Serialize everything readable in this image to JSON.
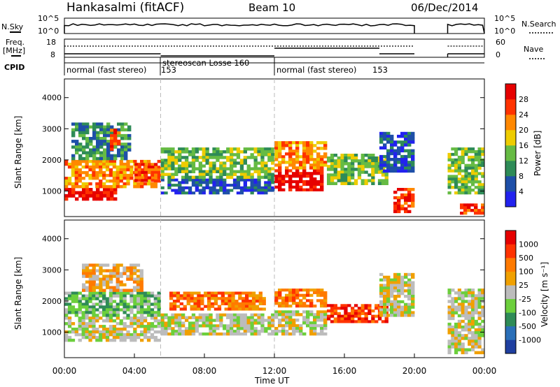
{
  "header": {
    "station": "Hankasalmi (fitACF)",
    "beam": "Beam 10",
    "date": "06/Dec/2014"
  },
  "nsky_panel": {
    "left_label": "N.Sky",
    "right_label": "N.Search",
    "left_ticks": [
      "10^5",
      "10^0"
    ],
    "right_ticks": [
      "10^5",
      "10^0"
    ]
  },
  "freq_panel": {
    "left_label_line1": "Freq.",
    "left_label_line2": "[MHz]",
    "left_ticks": [
      "18",
      "8"
    ],
    "right_label": "Nave",
    "right_ticks": [
      "60",
      "0"
    ]
  },
  "cpid": {
    "label": "CPID",
    "segments": [
      {
        "name": "normal (fast stereo)",
        "id": "153",
        "start": 0,
        "end": 5.5
      },
      {
        "name": "stereoscan Losse 160",
        "id": "",
        "start": 5.5,
        "end": 12.0
      },
      {
        "name": "normal (fast stereo)",
        "id": "153",
        "start": 12.0,
        "end": 24.0
      }
    ]
  },
  "power_panel": {
    "ylabel": "Slant Range [km]",
    "yticks": [
      "4000",
      "3000",
      "2000",
      "1000"
    ],
    "cbar_label": "Power [dB]",
    "cbar_ticks": [
      "28",
      "24",
      "20",
      "16",
      "12",
      "8",
      "4"
    ]
  },
  "velocity_panel": {
    "ylabel": "Slant Range [km]",
    "yticks": [
      "4000",
      "3000",
      "2000",
      "1000"
    ],
    "cbar_label": "Velocity [m s⁻¹]",
    "cbar_ticks": [
      "1000",
      "500",
      "100",
      "25",
      "-25",
      "-100",
      "-500",
      "-1000"
    ]
  },
  "xaxis": {
    "label": "Time UT",
    "ticks": [
      "00:00",
      "04:00",
      "08:00",
      "12:00",
      "16:00",
      "20:00",
      "00:00"
    ]
  },
  "colors": {
    "power_scale": [
      "#2222ee",
      "#1e4fa8",
      "#2e8b57",
      "#66bb44",
      "#eecc00",
      "#ff8800",
      "#ff3300",
      "#e60000"
    ],
    "velocity_scale": [
      "#1f3fa0",
      "#2a6fb8",
      "#2e8b57",
      "#6ccf3c",
      "#bcbcbc",
      "#f0a000",
      "#ff7a00",
      "#ff3300",
      "#e60000"
    ]
  },
  "chart_data": {
    "type": "heatmap",
    "x_unit": "hours UT",
    "xlim": [
      0,
      24
    ],
    "ylim_km": [
      180,
      4600
    ],
    "power_regions": [
      {
        "t0": 0.0,
        "t1": 3.0,
        "r0": 700,
        "r1": 1100,
        "level": 7
      },
      {
        "t0": 0.0,
        "t1": 5.5,
        "r0": 1100,
        "r1": 2000,
        "level": 5
      },
      {
        "t0": 0.4,
        "t1": 3.8,
        "r0": 2000,
        "r1": 3200,
        "level": 2
      },
      {
        "t0": 2.6,
        "t1": 3.2,
        "r0": 2300,
        "r1": 3000,
        "level": 6
      },
      {
        "t0": 4.0,
        "t1": 5.5,
        "r0": 1300,
        "r1": 1900,
        "level": 6
      },
      {
        "t0": 5.5,
        "t1": 12.0,
        "r0": 900,
        "r1": 1400,
        "level": 1
      },
      {
        "t0": 5.5,
        "t1": 12.0,
        "r0": 1400,
        "r1": 2400,
        "level": 3
      },
      {
        "t0": 12.0,
        "t1": 14.8,
        "r0": 1000,
        "r1": 1700,
        "level": 7
      },
      {
        "t0": 12.0,
        "t1": 15.0,
        "r0": 1700,
        "r1": 2600,
        "level": 5
      },
      {
        "t0": 15.0,
        "t1": 18.5,
        "r0": 1200,
        "r1": 2200,
        "level": 3
      },
      {
        "t0": 18.0,
        "t1": 20.0,
        "r0": 1600,
        "r1": 2900,
        "level": 1
      },
      {
        "t0": 18.8,
        "t1": 20.0,
        "r0": 300,
        "r1": 1100,
        "level": 6
      },
      {
        "t0": 21.9,
        "t1": 24.0,
        "r0": 900,
        "r1": 2400,
        "level": 3
      },
      {
        "t0": 22.6,
        "t1": 24.0,
        "r0": 250,
        "r1": 600,
        "level": 6
      }
    ],
    "velocity_regions": [
      {
        "t0": 0.0,
        "t1": 5.5,
        "r0": 700,
        "r1": 1500,
        "level": 4
      },
      {
        "t0": 0.0,
        "t1": 5.5,
        "r0": 1500,
        "r1": 2300,
        "level": 3
      },
      {
        "t0": 1.0,
        "t1": 4.5,
        "r0": 2300,
        "r1": 3200,
        "level": 5
      },
      {
        "t0": 5.5,
        "t1": 12.0,
        "r0": 900,
        "r1": 1600,
        "level": 4
      },
      {
        "t0": 6.0,
        "t1": 11.5,
        "r0": 1700,
        "r1": 2300,
        "level": 6
      },
      {
        "t0": 12.0,
        "t1": 15.0,
        "r0": 900,
        "r1": 1700,
        "level": 4
      },
      {
        "t0": 12.0,
        "t1": 15.0,
        "r0": 1800,
        "r1": 2400,
        "level": 6
      },
      {
        "t0": 15.0,
        "t1": 18.5,
        "r0": 1300,
        "r1": 1900,
        "level": 7
      },
      {
        "t0": 18.0,
        "t1": 20.0,
        "r0": 1500,
        "r1": 2900,
        "level": 4
      },
      {
        "t0": 21.9,
        "t1": 24.0,
        "r0": 300,
        "r1": 2400,
        "level": 4
      }
    ]
  }
}
